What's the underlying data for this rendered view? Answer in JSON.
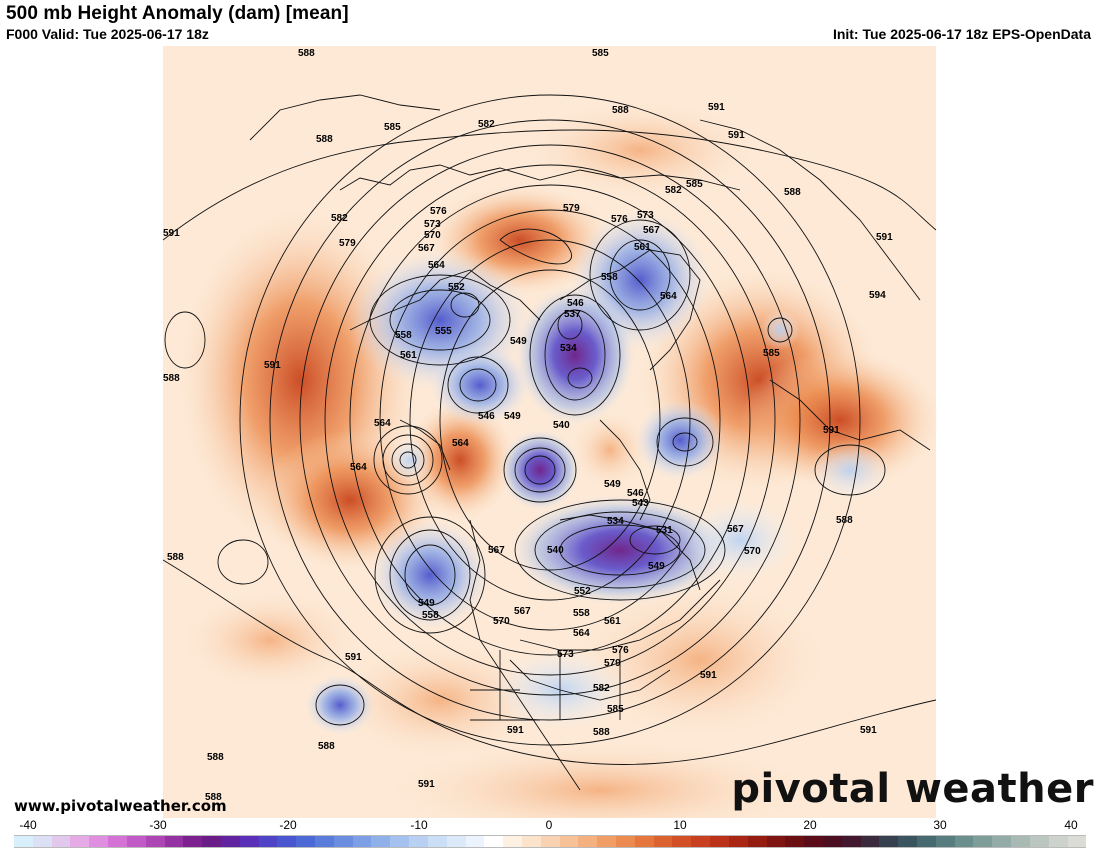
{
  "header": {
    "title": "500 mb Height Anomaly (dam) [mean]",
    "valid": "F000 Valid: Tue 2025-06-17 18z",
    "init": "Init: Tue 2025-06-17 18z EPS-OpenData"
  },
  "footer": {
    "site": "www.pivotalweather.com",
    "brand": "pivotal weather"
  },
  "colorbar": {
    "labels": [
      "-40",
      "-30",
      "-20",
      "-10",
      "0",
      "10",
      "20",
      "30",
      "40"
    ],
    "colors": [
      "#d8f0fb",
      "#dce0f5",
      "#e3c8ee",
      "#e6abe6",
      "#e08fe0",
      "#d472d6",
      "#c25bc7",
      "#ad45b5",
      "#9431a3",
      "#7d2190",
      "#6a1c88",
      "#6223a0",
      "#5a30b8",
      "#4f43c8",
      "#4a56d0",
      "#4c69d6",
      "#5a7cdb",
      "#6b8ee0",
      "#7d9fe5",
      "#90b0ea",
      "#a4c1ef",
      "#b8d1f3",
      "#cadef6",
      "#dce9f9",
      "#ecf3fc",
      "#ffffff",
      "#fdf1e4",
      "#fbe3cc",
      "#f9d3b1",
      "#f7c297",
      "#f4b07e",
      "#f09d66",
      "#eb8a51",
      "#e4763e",
      "#dc6230",
      "#d35027",
      "#c8401f",
      "#bb3119",
      "#a92614",
      "#951c10",
      "#801410",
      "#6c0f12",
      "#5a0c18",
      "#4c0f22",
      "#43182f",
      "#3b2a3e",
      "#36404f",
      "#3a5560",
      "#466a6f",
      "#577d7e",
      "#6a8f8c",
      "#7f9e9a",
      "#94aca7",
      "#a9b9b4",
      "#bcc6c0",
      "#cdd2cd",
      "#dcdcd7"
    ]
  },
  "map": {
    "contour_labels": [
      "585",
      "588",
      "591",
      "582",
      "585",
      "588",
      "591",
      "591",
      "588",
      "585",
      "582",
      "579",
      "576",
      "573",
      "567",
      "561",
      "558",
      "564",
      "582",
      "585",
      "588",
      "591",
      "594",
      "591",
      "588",
      "591",
      "576",
      "573",
      "570",
      "567",
      "564",
      "552",
      "555",
      "558",
      "561",
      "549",
      "546",
      "537",
      "534",
      "540",
      "546",
      "549",
      "564",
      "564",
      "564",
      "567",
      "549",
      "546",
      "543",
      "534",
      "531",
      "540",
      "549",
      "552",
      "558",
      "561",
      "564",
      "567",
      "570",
      "573",
      "576",
      "579",
      "582",
      "585",
      "588",
      "591",
      "591",
      "591",
      "591",
      "588",
      "588",
      "567",
      "570",
      "549",
      "558",
      "588",
      "588",
      "591",
      "588",
      "579"
    ]
  }
}
